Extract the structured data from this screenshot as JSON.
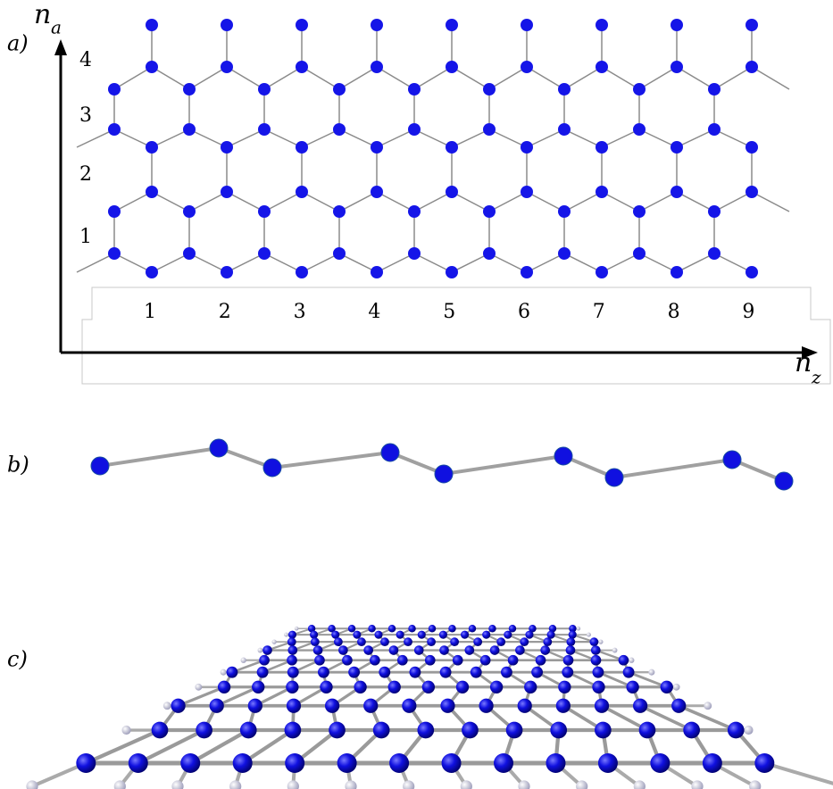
{
  "panels": {
    "a": {
      "label": "a)",
      "vertical_axis": {
        "symbol": "n",
        "subscript": "a",
        "ticks": [
          "1",
          "2",
          "3",
          "4"
        ]
      },
      "horizontal_axis": {
        "symbol": "n",
        "subscript": "z",
        "ticks": [
          "1",
          "2",
          "3",
          "4",
          "5",
          "6",
          "7",
          "8",
          "9"
        ]
      }
    },
    "b": {
      "label": "b)"
    },
    "c": {
      "label": "c)"
    }
  }
}
